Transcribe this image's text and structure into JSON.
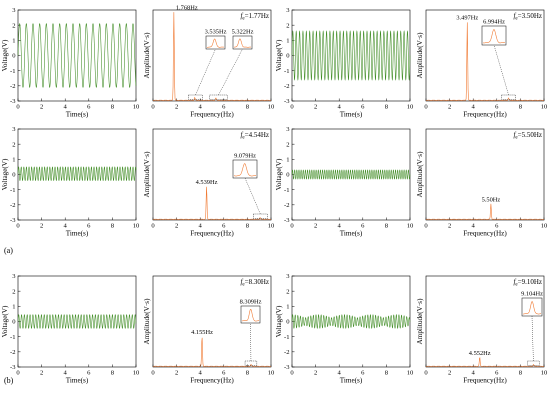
{
  "figure": {
    "row_labels": {
      "a": "(a)",
      "b": "(b)"
    }
  },
  "colors": {
    "wave": "#3c8a20",
    "spectrum": "#f07a33"
  },
  "chart_data": [
    {
      "type": "line",
      "panel": "time-1",
      "xlabel": "Time(s)",
      "ylabel": "Voltage(V)",
      "xlim": [
        0,
        10
      ],
      "ylim": [
        -3,
        3
      ],
      "xticks": [
        "0",
        "2",
        "4",
        "6",
        "8",
        "10"
      ],
      "yticks": [
        "-3",
        "-2",
        "-1",
        "0",
        "1",
        "2",
        "3"
      ],
      "series": [
        {
          "frequency_hz": 1.77,
          "amplitude_v": 2.1,
          "offset_v": 0.0
        }
      ]
    },
    {
      "type": "line",
      "panel": "spec-1",
      "xlabel": "Frequency(Hz)",
      "ylabel": "Amplitude(V·s)",
      "xlim": [
        0,
        10
      ],
      "ticks": [
        "0",
        "2",
        "4",
        "6",
        "8",
        "10"
      ],
      "condition": "f_e=1.77Hz",
      "peaks": [
        {
          "freq": 1.768,
          "height": 0.97,
          "label": "1.768Hz"
        },
        {
          "freq": 3.535,
          "height": 0.03,
          "label": "3.535Hz"
        },
        {
          "freq": 5.322,
          "height": 0.025,
          "label": "5.322Hz"
        }
      ]
    },
    {
      "type": "line",
      "panel": "time-2",
      "xlabel": "Time(s)",
      "ylabel": "Voltage(V)",
      "xlim": [
        0,
        10
      ],
      "ylim": [
        -3,
        3
      ],
      "xticks": [
        "0",
        "2",
        "4",
        "6",
        "8",
        "10"
      ],
      "yticks": [
        "-3",
        "-2",
        "-1",
        "0",
        "1",
        "2",
        "3"
      ],
      "series": [
        {
          "frequency_hz": 3.5,
          "amplitude_v": 1.6,
          "offset_v": 0.0
        }
      ]
    },
    {
      "type": "line",
      "panel": "spec-2",
      "xlabel": "Frequency(Hz)",
      "ylabel": "Amplitude(V·s)",
      "xlim": [
        0,
        10
      ],
      "ticks": [
        "0",
        "2",
        "4",
        "6",
        "8",
        "10"
      ],
      "condition": "f_e=3.50Hz",
      "peaks": [
        {
          "freq": 3.497,
          "height": 0.86,
          "label": "3.497Hz"
        },
        {
          "freq": 6.994,
          "height": 0.025,
          "label": "6.994Hz"
        }
      ]
    },
    {
      "type": "line",
      "panel": "time-3",
      "xlabel": "Time(s)",
      "ylabel": "Voltage(V)",
      "xlim": [
        0,
        10
      ],
      "ylim": [
        -3,
        3
      ],
      "xticks": [
        "0",
        "2",
        "4",
        "6",
        "8",
        "10"
      ],
      "yticks": [
        "-3",
        "-2",
        "-1",
        "0",
        "1",
        "2",
        "3"
      ],
      "series": [
        {
          "frequency_hz": 4.54,
          "amplitude_v": 0.45,
          "offset_v": 0.05
        }
      ]
    },
    {
      "type": "line",
      "panel": "spec-3",
      "xlabel": "Frequency(Hz)",
      "ylabel": "Amplitude(V·s)",
      "xlim": [
        0,
        10
      ],
      "ticks": [
        "0",
        "2",
        "4",
        "6",
        "8",
        "10"
      ],
      "condition": "f_e=4.54Hz",
      "peaks": [
        {
          "freq": 4.539,
          "height": 0.36,
          "label": "4.539Hz"
        },
        {
          "freq": 9.079,
          "height": 0.02,
          "label": "9.079Hz"
        }
      ]
    },
    {
      "type": "line",
      "panel": "time-4",
      "xlabel": "Time(s)",
      "ylabel": "Voltage(V)",
      "xlim": [
        0,
        10
      ],
      "ylim": [
        -3,
        3
      ],
      "xticks": [
        "0",
        "2",
        "4",
        "6",
        "8",
        "10"
      ],
      "yticks": [
        "-3",
        "-2",
        "-1",
        "0",
        "1",
        "2",
        "3"
      ],
      "series": [
        {
          "frequency_hz": 5.5,
          "amplitude_v": 0.3,
          "offset_v": 0.0
        }
      ]
    },
    {
      "type": "line",
      "panel": "spec-4",
      "xlabel": "Frequency(Hz)",
      "ylabel": "Amplitude(V·s)",
      "xlim": [
        0,
        10
      ],
      "ticks": [
        "0",
        "2",
        "4",
        "6",
        "8",
        "10"
      ],
      "condition": "f_e=5.50Hz",
      "peaks": [
        {
          "freq": 5.5,
          "height": 0.17,
          "label": "5.50Hz"
        }
      ]
    },
    {
      "type": "line",
      "panel": "time-5",
      "xlabel": "Time(s)",
      "ylabel": "Voltage(V)",
      "xlim": [
        0,
        10
      ],
      "ylim": [
        -3,
        3
      ],
      "xticks": [
        "0",
        "2",
        "4",
        "6",
        "8",
        "10"
      ],
      "yticks": [
        "-3",
        "-2",
        "-1",
        "0",
        "1",
        "2",
        "3"
      ],
      "series": [
        {
          "frequency_hz": 4.155,
          "amplitude_v": 0.45,
          "offset_v": 0.0
        }
      ]
    },
    {
      "type": "line",
      "panel": "spec-5",
      "xlabel": "Frequency(Hz)",
      "ylabel": "Amplitude(V·s)",
      "xlim": [
        0,
        10
      ],
      "ticks": [
        "0",
        "2",
        "4",
        "6",
        "8",
        "10"
      ],
      "condition": "f_e=8.30Hz",
      "peaks": [
        {
          "freq": 4.155,
          "height": 0.33,
          "label": "4.155Hz"
        },
        {
          "freq": 8.309,
          "height": 0.02,
          "label": "8.309Hz"
        }
      ]
    },
    {
      "type": "line",
      "panel": "time-6",
      "xlabel": "Time(s)",
      "ylabel": "Voltage(V)",
      "xlim": [
        0,
        10
      ],
      "ylim": [
        -3,
        3
      ],
      "xticks": [
        "0",
        "2",
        "4",
        "6",
        "8",
        "10"
      ],
      "yticks": [
        "-3",
        "-2",
        "-1",
        "0",
        "1",
        "2",
        "3"
      ],
      "series": [
        {
          "frequency_hz": 4.552,
          "amplitude_v": 0.45,
          "offset_v": 0.0,
          "beat_hz": 0.9
        }
      ]
    },
    {
      "type": "line",
      "panel": "spec-6",
      "xlabel": "Frequency(Hz)",
      "ylabel": "Amplitude(V·s)",
      "xlim": [
        0,
        10
      ],
      "ticks": [
        "0",
        "2",
        "4",
        "6",
        "8",
        "10"
      ],
      "condition": "f_e=9.10Hz",
      "peaks": [
        {
          "freq": 4.552,
          "height": 0.1,
          "label": "4.552Hz"
        },
        {
          "freq": 9.104,
          "height": 0.02,
          "label": "9.104Hz"
        }
      ]
    }
  ]
}
